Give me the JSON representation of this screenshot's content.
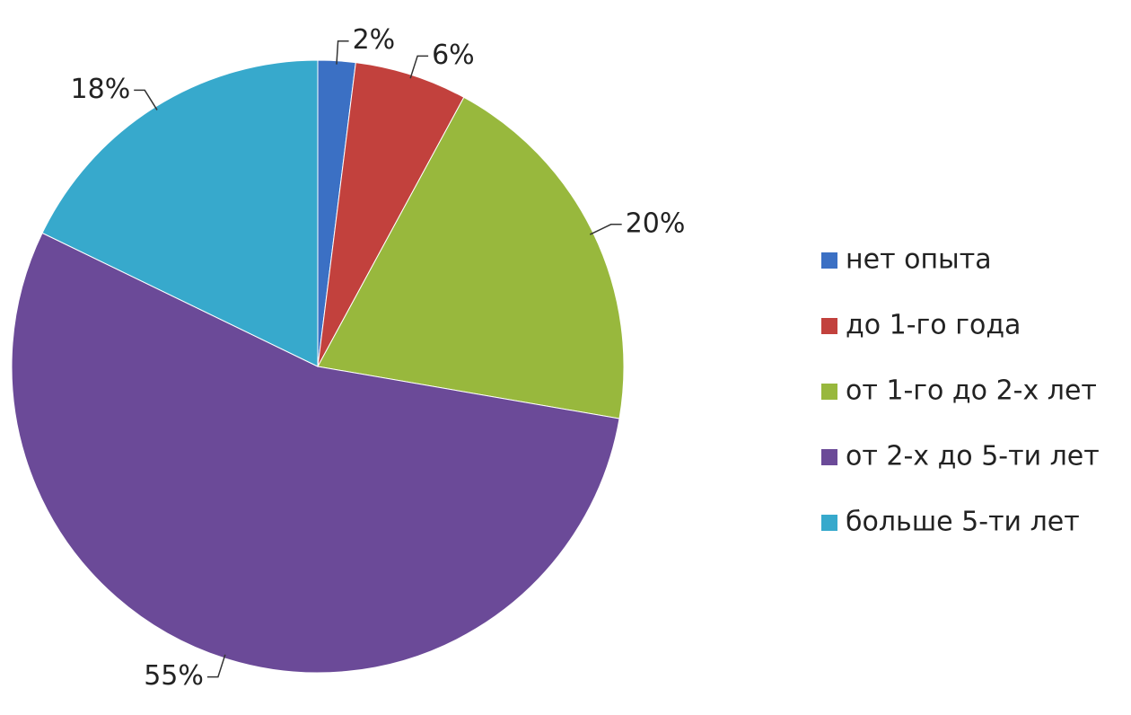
{
  "chart_data": {
    "type": "pie",
    "categories": [
      "нет опыта",
      "до 1-го года",
      "от 1-го до 2-х лет",
      "от 2-х до 5-ти лет",
      "больше 5-ти лет"
    ],
    "values": [
      2,
      6,
      20,
      55,
      18
    ],
    "value_labels": [
      "2%",
      "6%",
      "20%",
      "55%",
      "18%"
    ],
    "colors": [
      "#3b70c4",
      "#c2413d",
      "#98b83d",
      "#6b4a98",
      "#37a9cc"
    ],
    "legend": "right"
  }
}
